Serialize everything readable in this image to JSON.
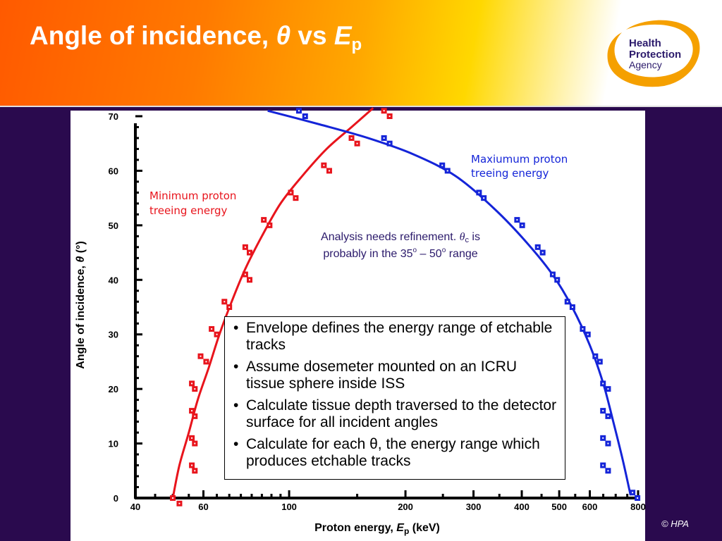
{
  "slide": {
    "title_main": "Angle of incidence, ",
    "title_theta": "θ",
    "title_vs": " vs ",
    "title_E": "E",
    "title_sub": "p",
    "copyright": "© HPA",
    "brand_color": "#ff6a00",
    "background_color": "#2a0a4e"
  },
  "logo": {
    "line1": "Health",
    "line2": "Protection",
    "line3": "Agency",
    "text_color": "#2b1a6b",
    "ring_color": "#f5a000"
  },
  "bullets": [
    "Envelope defines the energy range of etchable tracks",
    "Assume dosemeter mounted on an ICRU tissue sphere inside ISS",
    "Calculate tissue depth traversed to the detector surface for all incident angles",
    "Calculate for each θ, the energy range which produces etchable tracks"
  ],
  "chart_data": {
    "type": "scatter",
    "xlabel_main": "Proton energy, ",
    "xlabel_var": "E",
    "xlabel_sub": "p",
    "xlabel_unit": " (keV)",
    "ylabel_main": "Angle of incidence, ",
    "ylabel_var": "θ",
    "ylabel_unit": " (°)",
    "x_scale": "log",
    "xlim": [
      40,
      800
    ],
    "ylim": [
      0,
      70
    ],
    "x_ticks": [
      "40",
      "60",
      "100",
      "200",
      "300",
      "400",
      "500",
      "600",
      "800"
    ],
    "y_ticks": [
      "0",
      "10",
      "20",
      "30",
      "40",
      "50",
      "60",
      "70"
    ],
    "grid": false,
    "series": [
      {
        "name": "Minimum proton treeing energy",
        "color": "#e8141c",
        "label_line1": "Minimum proton",
        "label_line2": "treeing energy",
        "points": [
          [
            50,
            0
          ],
          [
            52,
            -1
          ],
          [
            56,
            21
          ],
          [
            57,
            20
          ],
          [
            56,
            16
          ],
          [
            57,
            15
          ],
          [
            56,
            11
          ],
          [
            57,
            10
          ],
          [
            56,
            6
          ],
          [
            57,
            5
          ],
          [
            59,
            26
          ],
          [
            61,
            25
          ],
          [
            63,
            31
          ],
          [
            65,
            30
          ],
          [
            68,
            36
          ],
          [
            70,
            35
          ],
          [
            77,
            46
          ],
          [
            79,
            45
          ],
          [
            77,
            41
          ],
          [
            79,
            40
          ],
          [
            86,
            51
          ],
          [
            89,
            50
          ],
          [
            101,
            56
          ],
          [
            104,
            55
          ],
          [
            123,
            61
          ],
          [
            127,
            60
          ],
          [
            145,
            66
          ],
          [
            150,
            65
          ],
          [
            176,
            71
          ],
          [
            182,
            70
          ]
        ],
        "curve": [
          [
            50,
            0
          ],
          [
            52,
            6
          ],
          [
            55,
            12
          ],
          [
            58,
            18
          ],
          [
            62,
            24
          ],
          [
            66,
            30
          ],
          [
            71,
            36
          ],
          [
            77,
            42
          ],
          [
            85,
            48
          ],
          [
            95,
            54
          ],
          [
            108,
            59
          ],
          [
            125,
            64
          ],
          [
            145,
            68
          ],
          [
            165,
            71.5
          ]
        ]
      },
      {
        "name": "Maxiumum proton treeing energy",
        "color": "#1424d8",
        "label_line1": "Maxiumum proton",
        "label_line2": "treeing energy",
        "points": [
          [
            106,
            71
          ],
          [
            110,
            70
          ],
          [
            176,
            66
          ],
          [
            182,
            65
          ],
          [
            249,
            61
          ],
          [
            257,
            60
          ],
          [
            310,
            56
          ],
          [
            319,
            55
          ],
          [
            389,
            51
          ],
          [
            401,
            50
          ],
          [
            440,
            46
          ],
          [
            453,
            45
          ],
          [
            481,
            41
          ],
          [
            494,
            40
          ],
          [
            525,
            36
          ],
          [
            541,
            35
          ],
          [
            575,
            31
          ],
          [
            593,
            30
          ],
          [
            620,
            26
          ],
          [
            637,
            25
          ],
          [
            649,
            21
          ],
          [
            669,
            20
          ],
          [
            649,
            16
          ],
          [
            669,
            15
          ],
          [
            649,
            11
          ],
          [
            669,
            10
          ],
          [
            649,
            6
          ],
          [
            669,
            5
          ],
          [
            774,
            1
          ],
          [
            797,
            0
          ]
        ],
        "curve": [
          [
            88,
            71
          ],
          [
            120,
            68.5
          ],
          [
            160,
            66
          ],
          [
            210,
            63
          ],
          [
            270,
            59
          ],
          [
            340,
            53
          ],
          [
            410,
            47
          ],
          [
            480,
            41
          ],
          [
            540,
            35
          ],
          [
            600,
            28
          ],
          [
            650,
            21
          ],
          [
            690,
            14
          ],
          [
            730,
            7
          ],
          [
            765,
            0.5
          ]
        ]
      }
    ],
    "annotation": {
      "line1_pre": "Analysis needs refinement. ",
      "line1_theta": "θ",
      "line1_sub": "c",
      "line1_post": " is",
      "line2_pre": "probably in the 35",
      "line2_sup1": "o",
      "line2_mid": " – 50",
      "line2_sup2": "o",
      "line2_post": " range",
      "color": "#2b1a6b"
    }
  }
}
